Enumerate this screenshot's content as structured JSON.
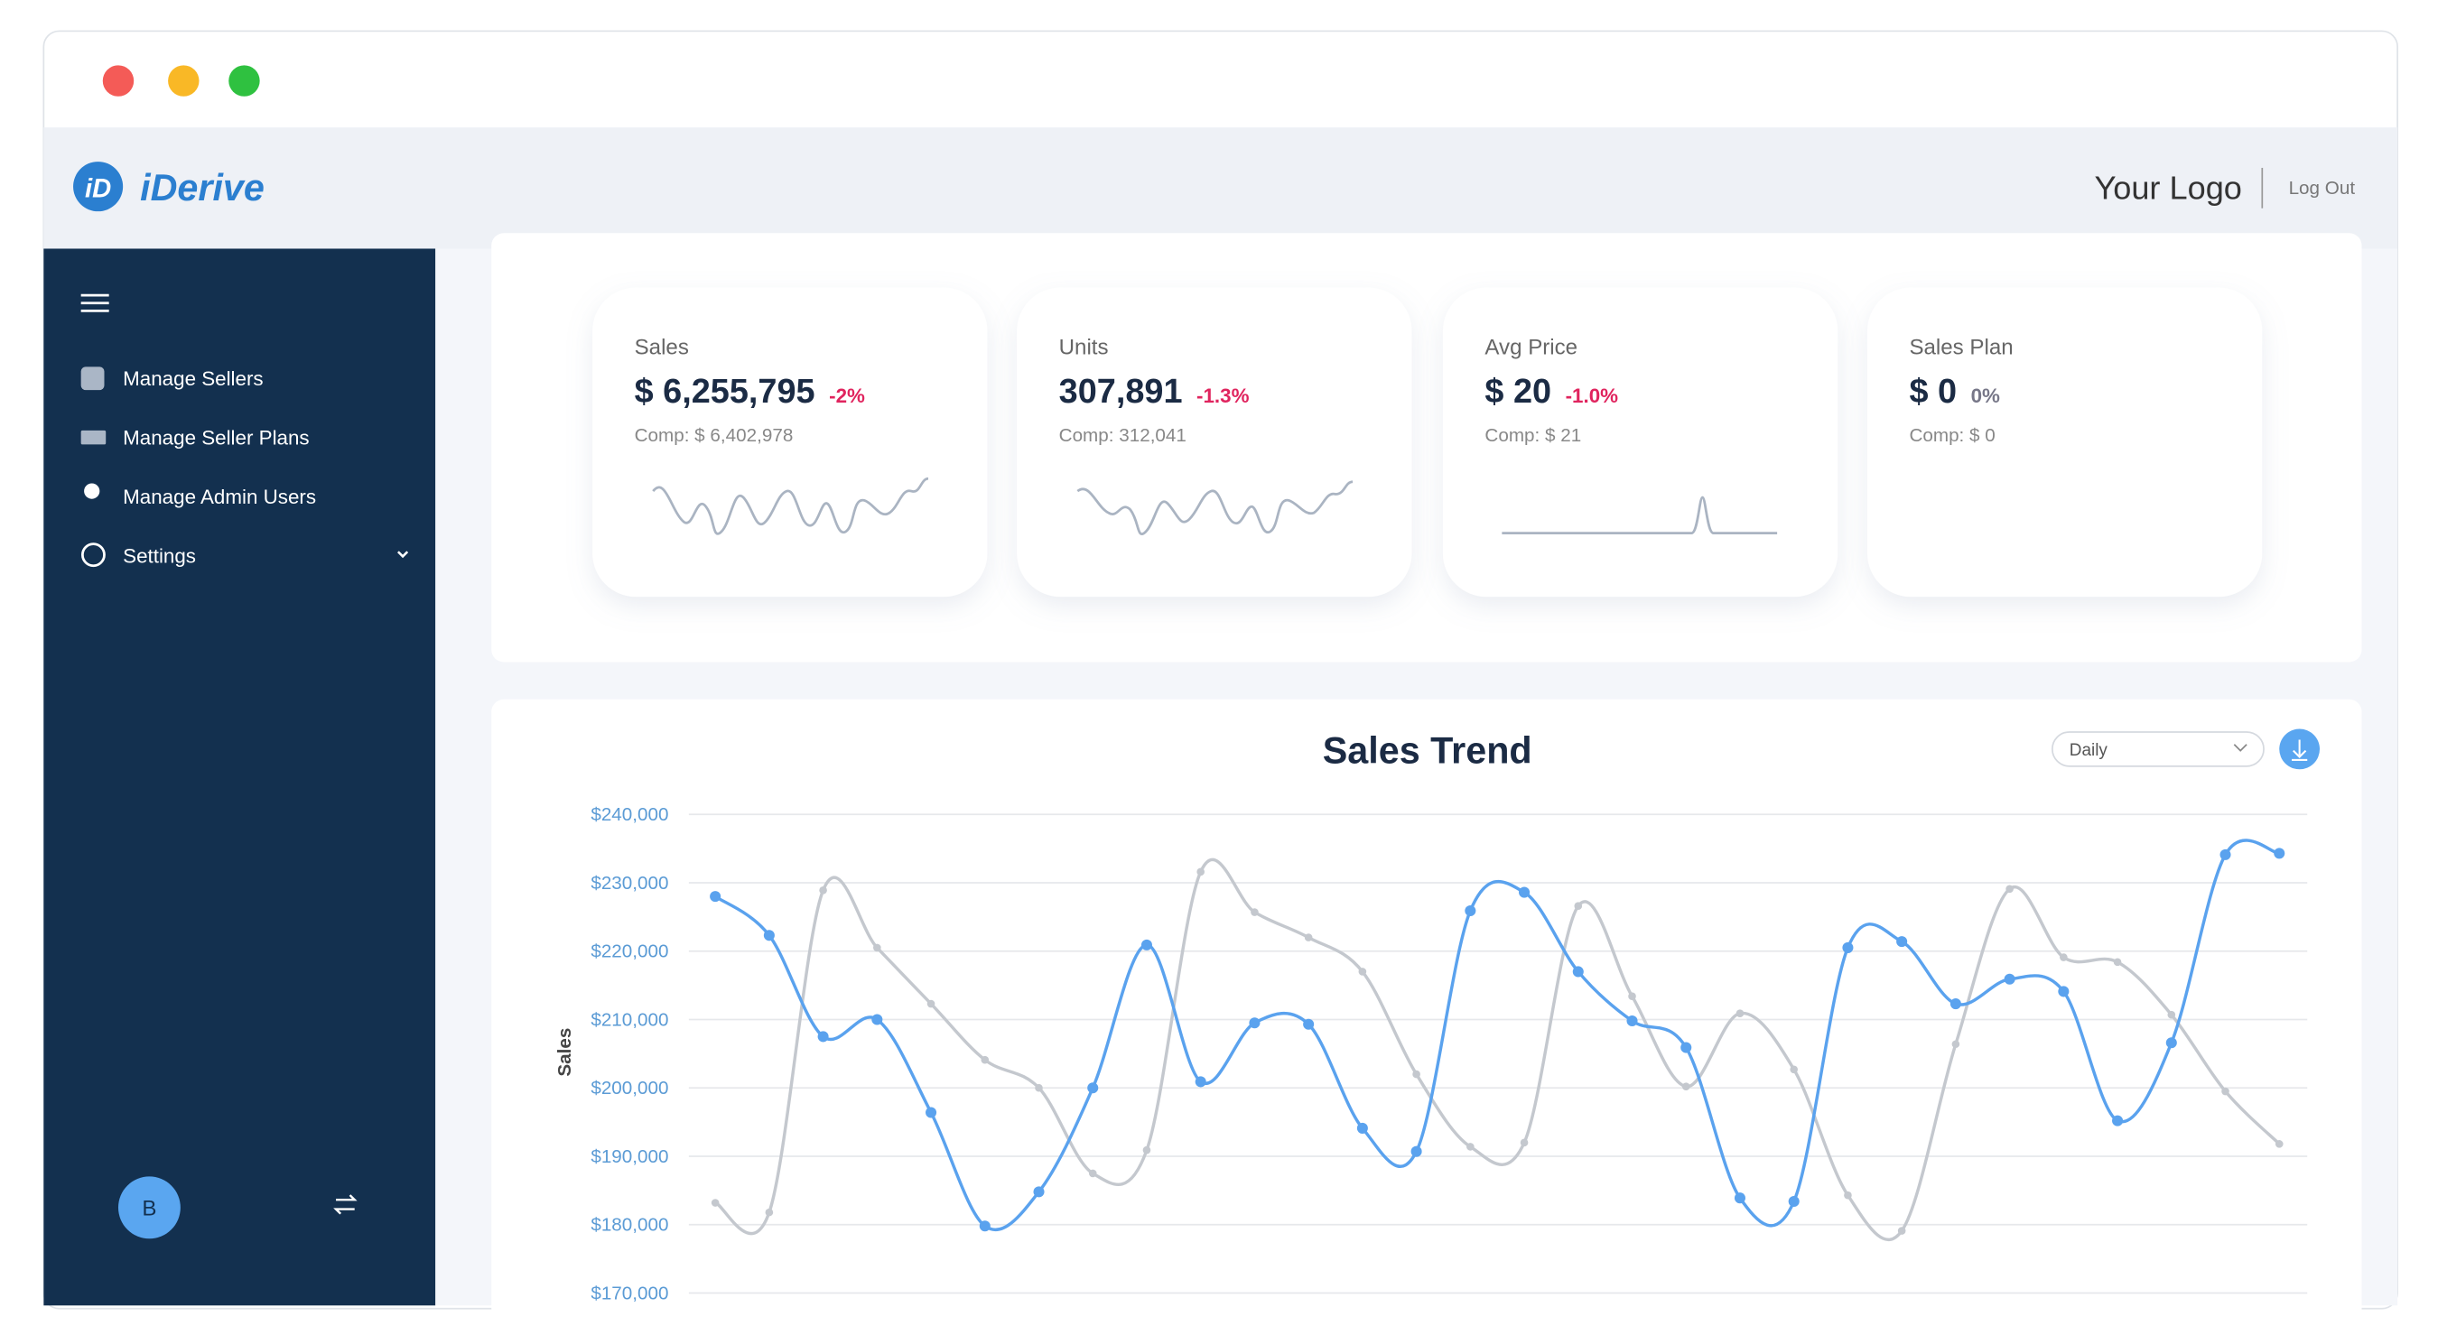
{
  "header": {
    "brand": "iDerive",
    "logo": "Your Logo",
    "logout": "Log Out"
  },
  "sidebar": {
    "items": [
      "Manage Sellers",
      "Manage Seller Plans",
      "Manage Admin Users",
      "Settings"
    ],
    "avatar": "B"
  },
  "kpis": [
    {
      "label": "Sales",
      "value": "$ 6,255,795",
      "change": "-2%",
      "comp": "Comp: $ 6,402,978"
    },
    {
      "label": "Units",
      "value": "307,891",
      "change": "-1.3%",
      "comp": "Comp:  312,041"
    },
    {
      "label": "Avg Price",
      "value": "$ 20",
      "change": "-1.0%",
      "comp": "Comp: $ 21"
    },
    {
      "label": "Sales Plan",
      "value": "$ 0",
      "change": "0%",
      "comp": "Comp: $ 0"
    }
  ],
  "chart_data": {
    "type": "line",
    "title": "Sales Trend",
    "period": "Daily",
    "ylabel": "Sales",
    "ylim": [
      170000,
      240000
    ],
    "yticks": [
      {
        "value": 170000,
        "label": "$170,000"
      },
      {
        "value": 180000,
        "label": "$180,000"
      },
      {
        "value": 190000,
        "label": "$190,000"
      },
      {
        "value": 200000,
        "label": "$200,000"
      },
      {
        "value": 210000,
        "label": "$210,000"
      },
      {
        "value": 220000,
        "label": "$220,000"
      },
      {
        "value": 230000,
        "label": "$230,000"
      },
      {
        "value": 240000,
        "label": "$240,000"
      }
    ],
    "grid": true,
    "series": [
      {
        "color": "#c4c8ce",
        "values": [
          183200,
          181800,
          228900,
          220500,
          212300,
          204100,
          200000,
          187500,
          190900,
          231600,
          225700,
          222000,
          217000,
          202000,
          191400,
          192000,
          226600,
          213400,
          200200,
          210900,
          202700,
          184300,
          179100,
          206400,
          229100,
          219100,
          218400,
          210700,
          199500,
          191800
        ]
      },
      {
        "color": "#5aa2ee",
        "values": [
          228000,
          222300,
          207500,
          210000,
          196400,
          179800,
          184800,
          200000,
          220900,
          200900,
          209500,
          209300,
          194100,
          190700,
          225900,
          228600,
          217000,
          209800,
          205900,
          183900,
          183400,
          220500,
          221400,
          212300,
          215900,
          214100,
          195200,
          206600,
          234100,
          234300
        ]
      }
    ]
  }
}
